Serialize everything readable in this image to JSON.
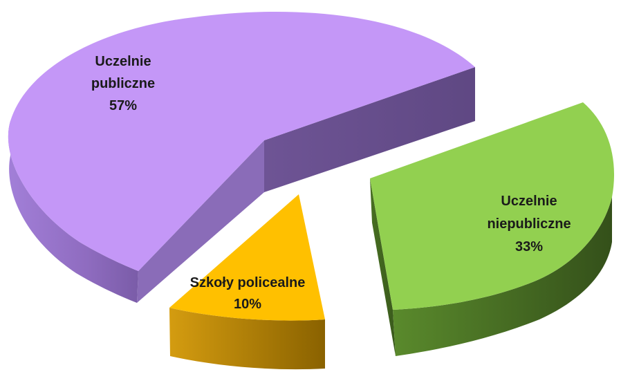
{
  "chart_data": {
    "type": "pie",
    "title": "",
    "slices": [
      {
        "label_lines": [
          "Uczelnie",
          "publiczne"
        ],
        "percent_label": "57%",
        "value": 57,
        "color": "#c497f7",
        "side_color": "#9470c2",
        "dark_color": "#6b5090"
      },
      {
        "label_lines": [
          "Uczelnie",
          "niepubliczne"
        ],
        "percent_label": "33%",
        "value": 33,
        "color": "#92d050",
        "side_color": "#5e8a2e",
        "dark_color": "#3d5d1e"
      },
      {
        "label_lines": [
          "Szkoły policealne"
        ],
        "percent_label": "10%",
        "value": 10,
        "color": "#ffc000",
        "side_color": "#c9930a",
        "dark_color": "#8a6000"
      }
    ],
    "legend": "none",
    "style": "3d-exploded"
  }
}
